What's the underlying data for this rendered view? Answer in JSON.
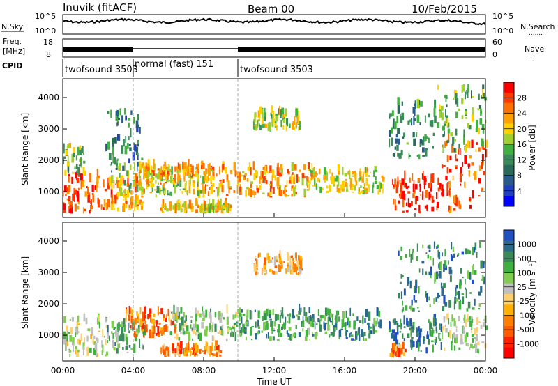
{
  "header": {
    "station": "Inuvik (fitACF)",
    "beam": "Beam 00",
    "date": "10/Feb/2015"
  },
  "noise_panel": {
    "left_label": "N.Sky",
    "left_ticks": [
      "10^5",
      "10^0"
    ],
    "right_label": "N.Search",
    "right_ticks": [
      "10^5",
      "10^0"
    ]
  },
  "freq_panel": {
    "left_label": "Freq.",
    "left_unit": "[MHz]",
    "left_ticks": [
      "18",
      "8"
    ],
    "right_label": "Nave",
    "right_ticks": [
      "60",
      "0"
    ]
  },
  "cpid": {
    "label": "CPID",
    "segments": [
      {
        "name": "twofsound 3503",
        "start_h": 0,
        "end_h": 4
      },
      {
        "name": "normal (fast) 151",
        "start_h": 4,
        "end_h": 10
      },
      {
        "name": "twofsound 3503",
        "start_h": 10,
        "end_h": 24
      }
    ]
  },
  "chart_data": [
    {
      "type": "heatmap",
      "title": "Power",
      "xlabel": "",
      "ylabel": "Slant Range [km]",
      "xlim": [
        0,
        24
      ],
      "ylim": [
        180,
        4600
      ],
      "x_ticks": [
        "00:00",
        "04:00",
        "08:00",
        "12:00",
        "16:00",
        "20:00",
        "00:00"
      ],
      "y_ticks": [
        1000,
        2000,
        3000,
        4000
      ],
      "colorbar": {
        "label": "Power [dB]",
        "ticks": [
          "28",
          "24",
          "20",
          "16",
          "12",
          "8",
          "4"
        ],
        "colors": [
          "#ff0000",
          "#ff3a00",
          "#ff7000",
          "#ffa000",
          "#ffd000",
          "#a0d030",
          "#40b040",
          "#3a8a5a",
          "#2a6a5a",
          "#2a5a8a",
          "#2040c0",
          "#0000ff"
        ]
      },
      "bands": [
        {
          "h": [
            0,
            2.5
          ],
          "r": [
            300,
            1500
          ],
          "level": 0.85
        },
        {
          "h": [
            0,
            1.2
          ],
          "r": [
            1500,
            2400
          ],
          "level": 0.5
        },
        {
          "h": [
            2.5,
            4.6
          ],
          "r": [
            350,
            1300
          ],
          "level": 0.75
        },
        {
          "h": [
            3,
            8
          ],
          "r": [
            800,
            1700
          ],
          "level": 0.55
        },
        {
          "h": [
            4,
            8.5
          ],
          "r": [
            1200,
            1800
          ],
          "level": 0.7
        },
        {
          "h": [
            8,
            14
          ],
          "r": [
            800,
            1700
          ],
          "level": 0.72
        },
        {
          "h": [
            14,
            18.2
          ],
          "r": [
            900,
            1650
          ],
          "level": 0.6
        },
        {
          "h": [
            5.5,
            9.5
          ],
          "r": [
            300,
            550
          ],
          "level": 0.65
        },
        {
          "h": [
            10.8,
            13.5
          ],
          "r": [
            2900,
            3500
          ],
          "level": 0.55
        },
        {
          "h": [
            18.7,
            21.5
          ],
          "r": [
            300,
            1400
          ],
          "level": 0.92
        },
        {
          "h": [
            21.5,
            24
          ],
          "r": [
            300,
            2600
          ],
          "level": 0.85
        },
        {
          "h": [
            18.5,
            21
          ],
          "r": [
            2000,
            3800
          ],
          "level": 0.35
        },
        {
          "h": [
            21,
            24
          ],
          "r": [
            2200,
            4300
          ],
          "level": 0.45
        },
        {
          "h": [
            2.4,
            4.5
          ],
          "r": [
            1600,
            3500
          ],
          "level": 0.3
        }
      ]
    },
    {
      "type": "heatmap",
      "title": "Velocity",
      "xlabel": "Time UT",
      "ylabel": "Slant Range [km]",
      "xlim": [
        0,
        24
      ],
      "ylim": [
        180,
        4600
      ],
      "x_ticks": [
        "00:00",
        "04:00",
        "08:00",
        "12:00",
        "16:00",
        "20:00",
        "00:00"
      ],
      "y_ticks": [
        1000,
        2000,
        3000,
        4000
      ],
      "colorbar": {
        "label": "Velocity [m s⁻¹]",
        "ticks": [
          "1000",
          "500",
          "100",
          "25",
          "-25",
          "-100",
          "-500",
          "-1000"
        ],
        "colors": [
          "#2050c0",
          "#2a6a8a",
          "#3a8a5a",
          "#40b040",
          "#80cc50",
          "#c0c0c0",
          "#ffd070",
          "#ffb000",
          "#ff8000",
          "#ff5a00",
          "#ff2000",
          "#ff0000"
        ]
      },
      "bands": [
        {
          "h": [
            0,
            2.5
          ],
          "r": [
            300,
            1500
          ],
          "level": 0.55
        },
        {
          "h": [
            2.5,
            4.6
          ],
          "r": [
            400,
            1300
          ],
          "level": 0.7
        },
        {
          "h": [
            3.5,
            6.5
          ],
          "r": [
            900,
            1700
          ],
          "level": 0.25
        },
        {
          "h": [
            6,
            10
          ],
          "r": [
            800,
            1700
          ],
          "level": 0.65
        },
        {
          "h": [
            10,
            14
          ],
          "r": [
            800,
            1750
          ],
          "level": 0.75
        },
        {
          "h": [
            14,
            18
          ],
          "r": [
            800,
            1650
          ],
          "level": 0.78
        },
        {
          "h": [
            5.5,
            9
          ],
          "r": [
            300,
            550
          ],
          "level": 0.3
        },
        {
          "h": [
            10.8,
            13.5
          ],
          "r": [
            2900,
            3500
          ],
          "level": 0.35
        },
        {
          "h": [
            18.5,
            21.5
          ],
          "r": [
            400,
            1400
          ],
          "level": 0.85
        },
        {
          "h": [
            21.5,
            24
          ],
          "r": [
            400,
            1500
          ],
          "level": 0.6
        },
        {
          "h": [
            19,
            24
          ],
          "r": [
            1700,
            3800
          ],
          "level": 0.8
        },
        {
          "h": [
            18.5,
            19.5
          ],
          "r": [
            250,
            600
          ],
          "level": 0.3
        }
      ]
    }
  ]
}
